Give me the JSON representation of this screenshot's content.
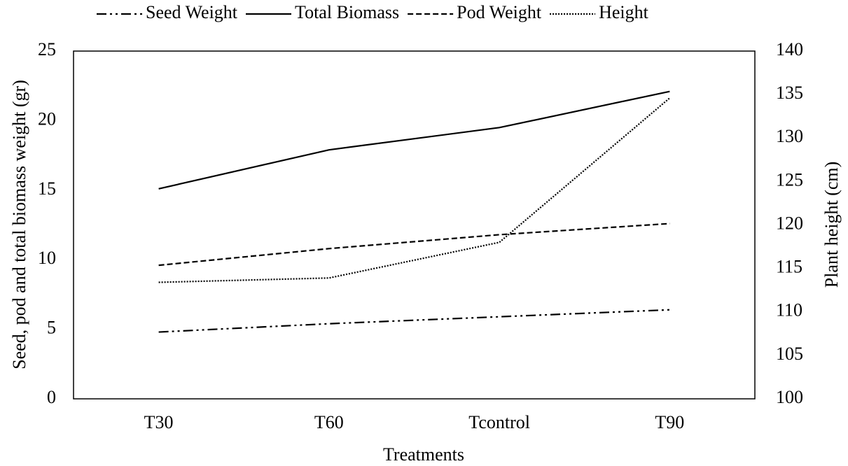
{
  "chart_data": {
    "type": "line",
    "categories": [
      "T30",
      "T60",
      "Tcontrol",
      "T90"
    ],
    "series": [
      {
        "name": "Seed Weight",
        "color": "#000000",
        "line_style": "dash-dot-dot",
        "values": [
          4.8,
          5.4,
          5.9,
          6.4
        ]
      },
      {
        "name": "Total Biomass",
        "color": "#000000",
        "line_style": "solid",
        "values": [
          15.1,
          17.9,
          19.5,
          22.1
        ]
      },
      {
        "name": "Pod Weight",
        "color": "#000000",
        "line_style": "dashed",
        "values": [
          9.6,
          10.8,
          11.8,
          12.6
        ]
      },
      {
        "name": "Height",
        "color": "#000000",
        "line_style": "dotted",
        "axis": "y2",
        "values": [
          113.4,
          113.9,
          118.0,
          134.6
        ]
      }
    ],
    "xlabel": "Treatments",
    "ylabel": "Seed, pod and total biomass weight  (gr)",
    "y2label": "Plant height  (cm)",
    "ylim": [
      0,
      25
    ],
    "yticks": [
      0,
      5,
      10,
      15,
      20,
      25
    ],
    "y2lim": [
      100,
      140
    ],
    "y2ticks": [
      100,
      105,
      110,
      115,
      120,
      125,
      130,
      135,
      140
    ],
    "grid": false,
    "legend": "top"
  }
}
